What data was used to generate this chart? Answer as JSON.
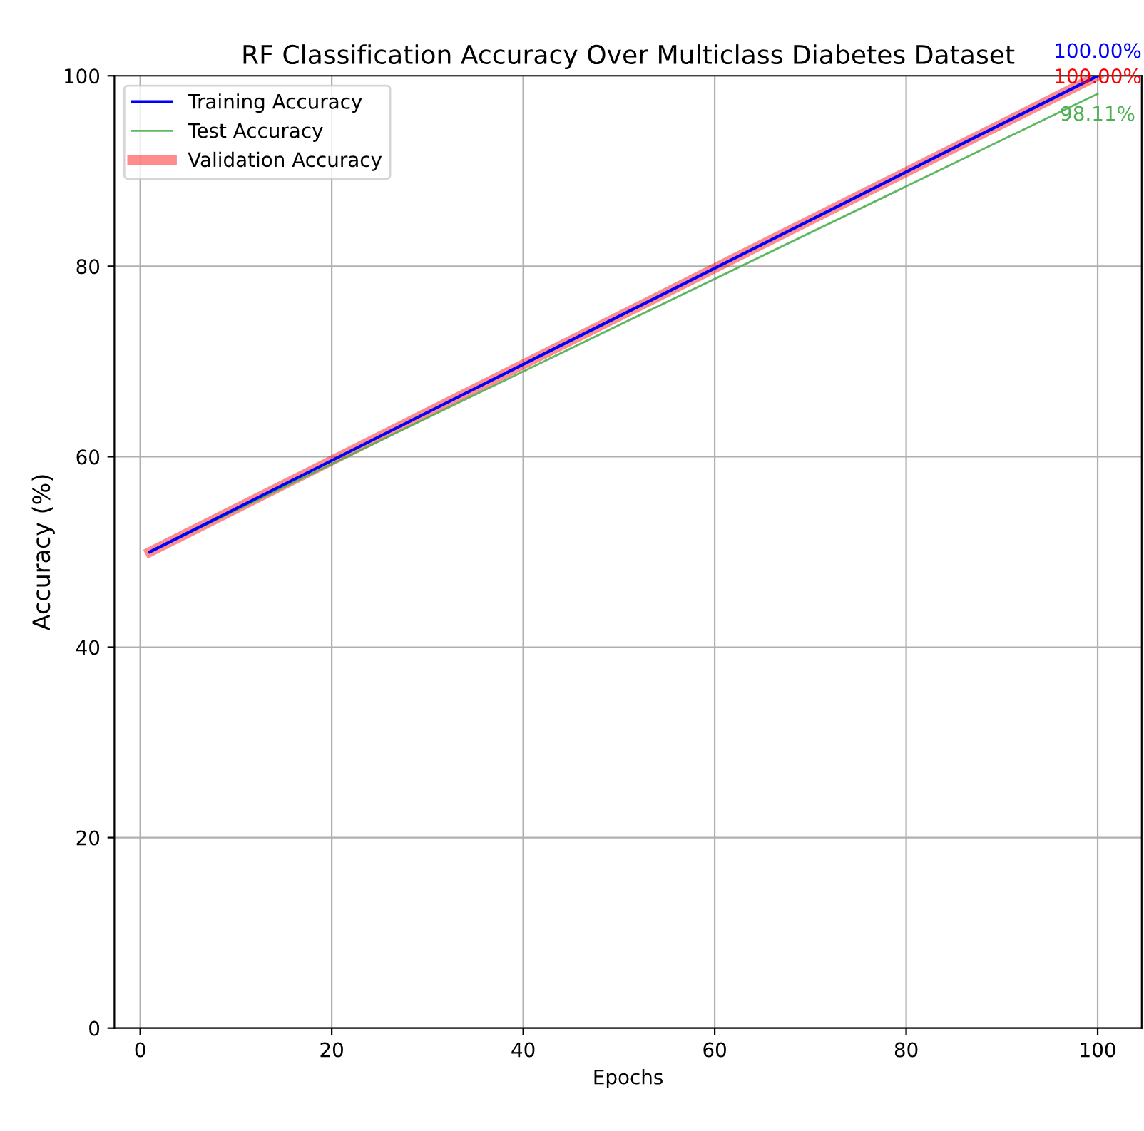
{
  "chart_data": {
    "type": "line",
    "title": "RF Classification Accuracy Over Multiclass Diabetes Dataset",
    "xlabel": "Epochs",
    "ylabel": "Accuracy (%)",
    "x": [
      1,
      100
    ],
    "series": [
      {
        "name": "Training Accuracy",
        "color": "#0000ff",
        "values": [
          50,
          100
        ],
        "value_labels": [
          null,
          "100.00%"
        ]
      },
      {
        "name": "Test Accuracy",
        "color": "#4caf50",
        "values": [
          50,
          98.11
        ],
        "value_labels": [
          null,
          "98.11%"
        ]
      },
      {
        "name": "Validation Accuracy",
        "color": "#ff0000",
        "values": [
          50,
          100
        ],
        "value_labels": [
          null,
          "100.00%"
        ]
      }
    ],
    "xlim": [
      -2.7,
      104.6
    ],
    "ylim": [
      0,
      100
    ],
    "xticks": [
      0,
      20,
      40,
      60,
      80,
      100
    ],
    "yticks": [
      0,
      20,
      40,
      60,
      80,
      100
    ],
    "grid": true,
    "legend": "top left",
    "marker": "none",
    "line_style": "solid"
  }
}
